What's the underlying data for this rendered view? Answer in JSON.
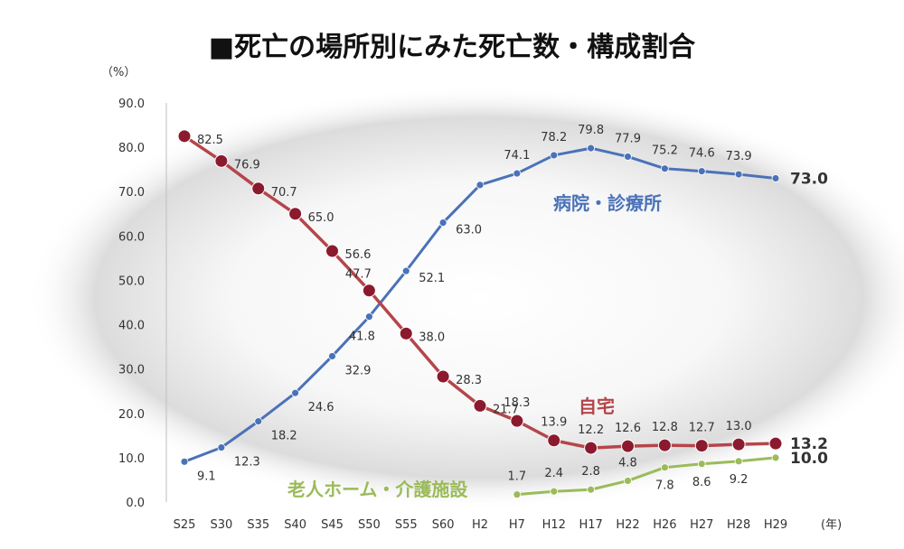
{
  "chart_data": {
    "type": "line",
    "title": "■死亡の場所別にみた死亡数・構成割合",
    "ylabel": "（%）",
    "xlabel": "(年)",
    "ylim": [
      0,
      90
    ],
    "yticks": [
      "0.0",
      "10.0",
      "20.0",
      "30.0",
      "40.0",
      "50.0",
      "60.0",
      "70.0",
      "80.0",
      "90.0"
    ],
    "categories": [
      "S25",
      "S30",
      "S35",
      "S40",
      "S45",
      "S50",
      "S55",
      "S60",
      "H2",
      "H7",
      "H12",
      "H17",
      "H22",
      "H26",
      "H27",
      "H28",
      "H29"
    ],
    "series": [
      {
        "name": "病院・診療所",
        "color": "#4a72b8",
        "values": [
          9.1,
          12.3,
          18.2,
          24.6,
          32.9,
          41.8,
          52.1,
          63.0,
          71.5,
          74.1,
          78.2,
          79.8,
          77.9,
          75.2,
          74.6,
          73.9,
          73.0
        ],
        "labels": [
          "9.1",
          "12.3",
          "18.2",
          "24.6",
          "32.9",
          "41.8",
          "52.1",
          "63.0",
          "",
          "74.1",
          "78.2",
          "79.8",
          "77.9",
          "75.2",
          "74.6",
          "73.9",
          "73.0"
        ]
      },
      {
        "name": "自宅",
        "color": "#b5454a",
        "marker_color": "#8b1a2e",
        "values": [
          82.5,
          76.9,
          70.7,
          65.0,
          56.6,
          47.7,
          38.0,
          28.3,
          21.7,
          18.3,
          13.9,
          12.2,
          12.6,
          12.8,
          12.7,
          13.0,
          13.2
        ],
        "labels": [
          "82.5",
          "76.9",
          "70.7",
          "65.0",
          "56.6",
          "47.7",
          "38.0",
          "28.3",
          "21.7",
          "18.3",
          "13.9",
          "12.2",
          "12.6",
          "12.8",
          "12.7",
          "13.0",
          "13.2"
        ]
      },
      {
        "name": "老人ホーム・介護施設",
        "color": "#9bbb59",
        "values": [
          null,
          null,
          null,
          null,
          null,
          null,
          null,
          null,
          null,
          1.7,
          2.4,
          2.8,
          4.8,
          7.8,
          8.6,
          9.2,
          10.0
        ],
        "labels": [
          "",
          "",
          "",
          "",
          "",
          "",
          "",
          "",
          "",
          "1.7",
          "2.4",
          "2.8",
          "4.8",
          "7.8",
          "8.6",
          "9.2",
          "10.0"
        ]
      }
    ]
  }
}
